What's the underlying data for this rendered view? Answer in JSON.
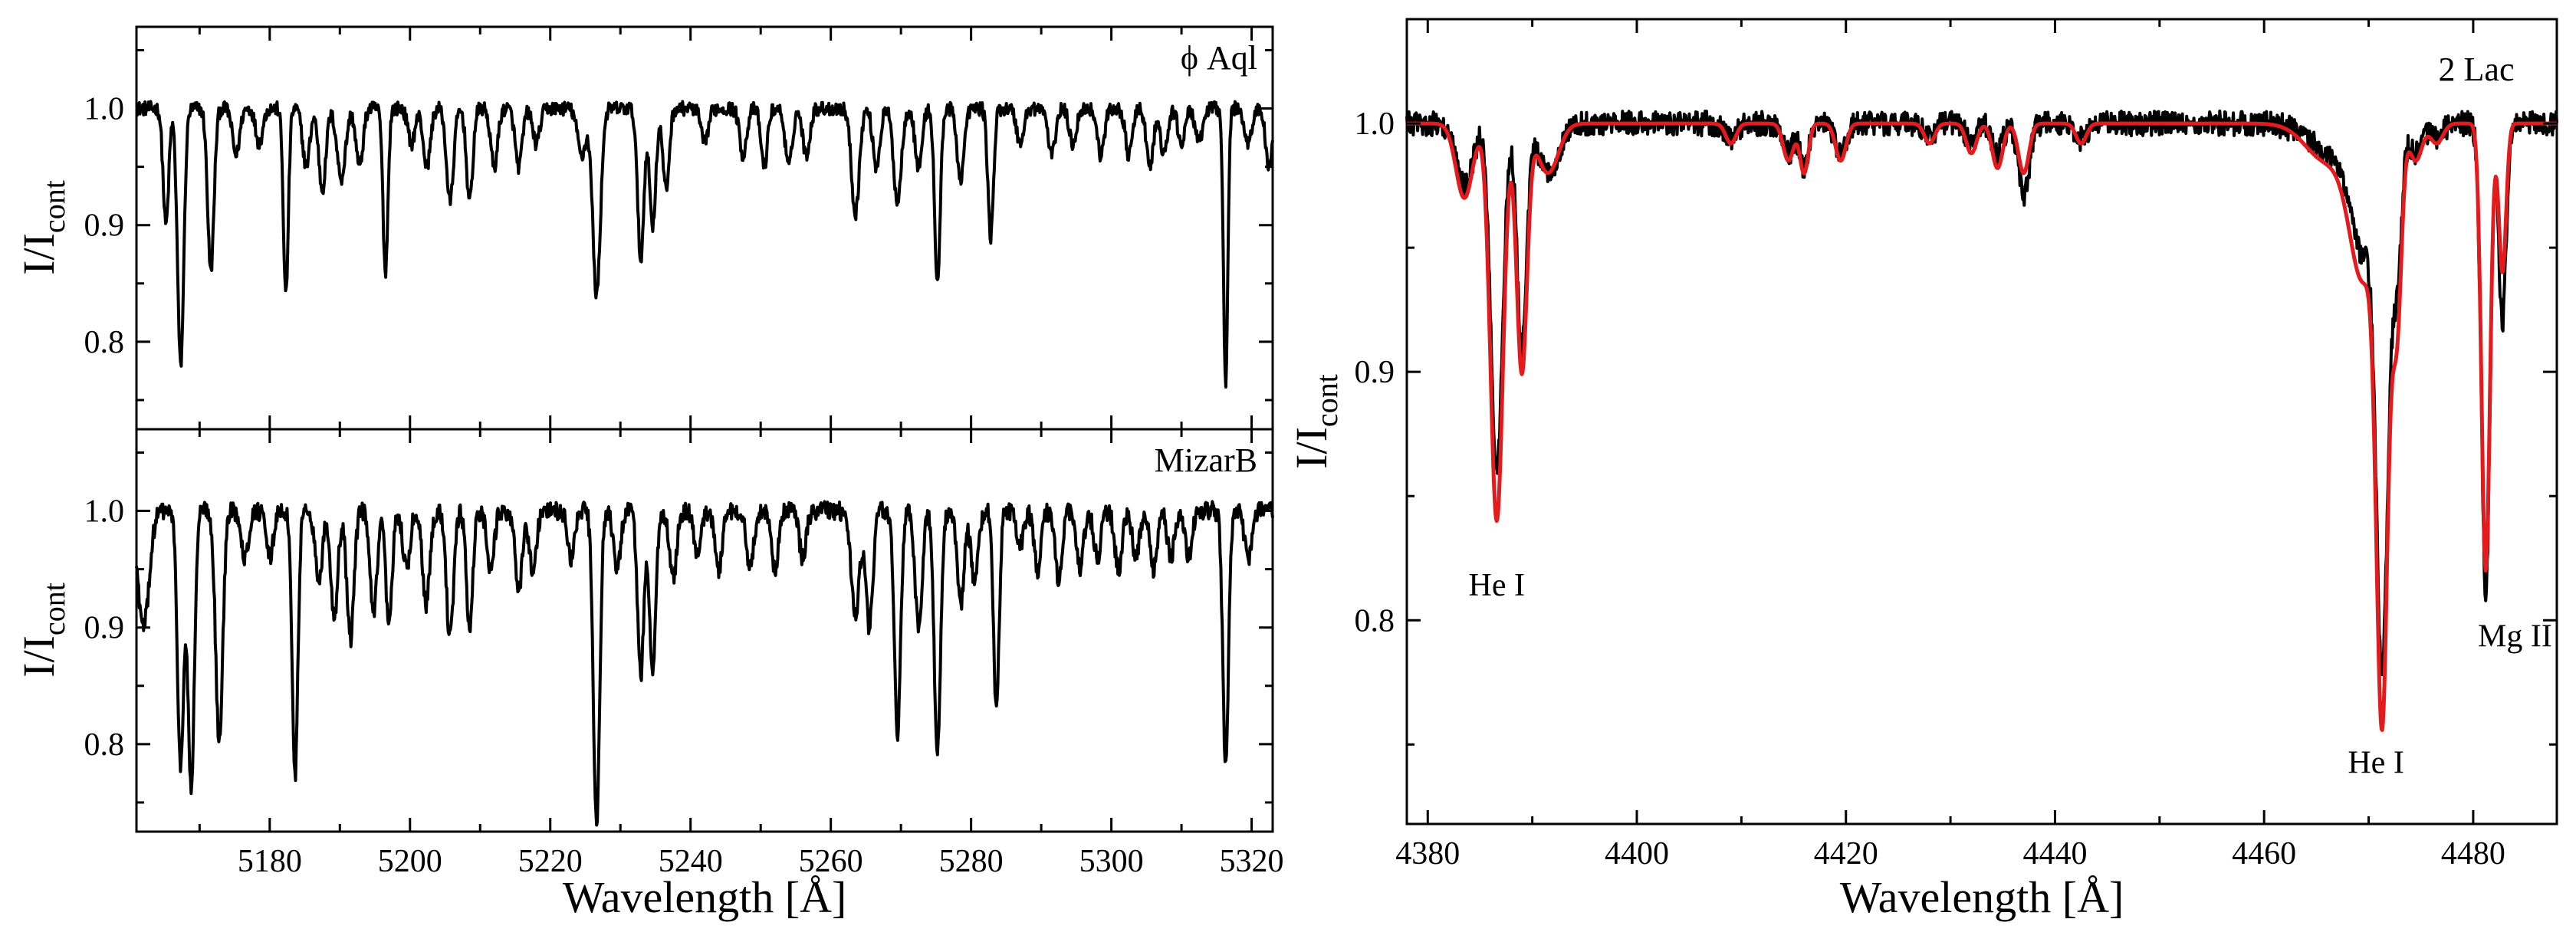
{
  "colors": {
    "observed": "#000000",
    "model": "#e41a1c"
  },
  "chart_data": [
    {
      "id": "phiaql",
      "type": "line",
      "star": "ϕ Aql",
      "ylabel_main": "I/I",
      "ylabel_sub": "cont",
      "xlabel": "",
      "xlim": [
        5161,
        5323
      ],
      "ylim": [
        0.725,
        1.07
      ],
      "xticks": [
        5180,
        5200,
        5220,
        5240,
        5260,
        5280,
        5300,
        5320
      ],
      "yticks": [
        0.8,
        0.9,
        1.0
      ],
      "ytick_labels": [
        "0.8",
        "0.9",
        "1.0"
      ],
      "continuum": 1.0,
      "noise": 0.006,
      "lines": [
        [
          5165.2,
          0.1,
          0.4
        ],
        [
          5167.3,
          0.22,
          0.45
        ],
        [
          5171.6,
          0.14,
          0.45
        ],
        [
          5175.2,
          0.04,
          0.5
        ],
        [
          5178.5,
          0.03,
          0.5
        ],
        [
          5182.3,
          0.16,
          0.35
        ],
        [
          5185.2,
          0.05,
          0.5
        ],
        [
          5187.5,
          0.07,
          0.5
        ],
        [
          5190.2,
          0.06,
          0.6
        ],
        [
          5192.8,
          0.05,
          0.5
        ],
        [
          5196.5,
          0.14,
          0.35
        ],
        [
          5200.2,
          0.03,
          0.5
        ],
        [
          5202.4,
          0.05,
          0.5
        ],
        [
          5205.7,
          0.08,
          0.5
        ],
        [
          5208.5,
          0.08,
          0.45
        ],
        [
          5212.0,
          0.05,
          0.5
        ],
        [
          5215.5,
          0.05,
          0.5
        ],
        [
          5218.0,
          0.03,
          0.5
        ],
        [
          5224.5,
          0.04,
          0.6
        ],
        [
          5226.6,
          0.16,
          0.55
        ],
        [
          5232.9,
          0.13,
          0.45
        ],
        [
          5234.6,
          0.1,
          0.45
        ],
        [
          5236.5,
          0.07,
          0.45
        ],
        [
          5242.0,
          0.03,
          0.5
        ],
        [
          5247.5,
          0.04,
          0.5
        ],
        [
          5250.5,
          0.05,
          0.45
        ],
        [
          5254.0,
          0.05,
          0.5
        ],
        [
          5256.5,
          0.04,
          0.5
        ],
        [
          5263.5,
          0.09,
          0.55
        ],
        [
          5266.5,
          0.05,
          0.5
        ],
        [
          5269.5,
          0.08,
          0.55
        ],
        [
          5272.5,
          0.05,
          0.5
        ],
        [
          5275.2,
          0.15,
          0.4
        ],
        [
          5278.5,
          0.06,
          0.5
        ],
        [
          5282.8,
          0.11,
          0.4
        ],
        [
          5287.0,
          0.03,
          0.5
        ],
        [
          5291.5,
          0.04,
          0.5
        ],
        [
          5294.5,
          0.03,
          0.5
        ],
        [
          5298.5,
          0.04,
          0.5
        ],
        [
          5302.5,
          0.04,
          0.5
        ],
        [
          5305.5,
          0.05,
          0.5
        ],
        [
          5307.5,
          0.04,
          0.5
        ],
        [
          5310.0,
          0.03,
          0.5
        ],
        [
          5312.5,
          0.03,
          0.5
        ],
        [
          5316.3,
          0.24,
          0.3
        ],
        [
          5319.5,
          0.03,
          0.5
        ],
        [
          5322.5,
          0.05,
          0.5
        ]
      ],
      "series": [
        {
          "name": "Observed spectrum",
          "color_key": "observed",
          "kind": "observed"
        }
      ],
      "annotations": []
    },
    {
      "id": "mizarb",
      "type": "line",
      "star": "MizarB",
      "ylabel_main": "I/I",
      "ylabel_sub": "cont",
      "xlabel": "Wavelength [Å]",
      "xlim": [
        5161,
        5323
      ],
      "ylim": [
        0.725,
        1.07
      ],
      "xticks": [
        5180,
        5200,
        5220,
        5240,
        5260,
        5280,
        5300,
        5320
      ],
      "xtick_labels": [
        "5180",
        "5200",
        "5220",
        "5240",
        "5260",
        "5280",
        "5300",
        "5320"
      ],
      "yticks": [
        0.8,
        0.9,
        1.0
      ],
      "ytick_labels": [
        "0.8",
        "0.9",
        "1.0"
      ],
      "continuum": 1.0,
      "noise": 0.008,
      "lines": [
        [
          5162.0,
          0.1,
          0.8
        ],
        [
          5167.3,
          0.22,
          0.45
        ],
        [
          5168.8,
          0.24,
          0.45
        ],
        [
          5172.8,
          0.2,
          0.5
        ],
        [
          5176.5,
          0.04,
          0.5
        ],
        [
          5180.0,
          0.04,
          0.5
        ],
        [
          5183.6,
          0.23,
          0.4
        ],
        [
          5187.0,
          0.06,
          0.5
        ],
        [
          5189.2,
          0.09,
          0.5
        ],
        [
          5191.5,
          0.11,
          0.5
        ],
        [
          5194.8,
          0.09,
          0.5
        ],
        [
          5197.0,
          0.1,
          0.45
        ],
        [
          5199.5,
          0.05,
          0.5
        ],
        [
          5202.3,
          0.08,
          0.5
        ],
        [
          5205.7,
          0.11,
          0.5
        ],
        [
          5208.5,
          0.1,
          0.45
        ],
        [
          5211.5,
          0.05,
          0.5
        ],
        [
          5215.5,
          0.07,
          0.5
        ],
        [
          5217.5,
          0.05,
          0.5
        ],
        [
          5223.0,
          0.04,
          0.5
        ],
        [
          5226.6,
          0.27,
          0.45
        ],
        [
          5229.5,
          0.05,
          0.5
        ],
        [
          5232.9,
          0.14,
          0.45
        ],
        [
          5234.6,
          0.14,
          0.45
        ],
        [
          5237.5,
          0.06,
          0.5
        ],
        [
          5241.0,
          0.04,
          0.5
        ],
        [
          5244.0,
          0.05,
          0.5
        ],
        [
          5248.5,
          0.05,
          0.5
        ],
        [
          5252.0,
          0.05,
          0.5
        ],
        [
          5256.0,
          0.04,
          0.5
        ],
        [
          5263.5,
          0.09,
          0.6
        ],
        [
          5265.5,
          0.1,
          0.5
        ],
        [
          5269.5,
          0.19,
          0.45
        ],
        [
          5272.5,
          0.1,
          0.5
        ],
        [
          5275.2,
          0.21,
          0.45
        ],
        [
          5278.5,
          0.08,
          0.5
        ],
        [
          5280.5,
          0.06,
          0.5
        ],
        [
          5283.6,
          0.17,
          0.4
        ],
        [
          5287.0,
          0.03,
          0.5
        ],
        [
          5289.5,
          0.05,
          0.5
        ],
        [
          5292.5,
          0.06,
          0.5
        ],
        [
          5295.5,
          0.05,
          0.5
        ],
        [
          5298.0,
          0.04,
          0.5
        ],
        [
          5301.0,
          0.05,
          0.5
        ],
        [
          5303.5,
          0.04,
          0.5
        ],
        [
          5306.0,
          0.05,
          0.5
        ],
        [
          5308.5,
          0.04,
          0.5
        ],
        [
          5311.0,
          0.04,
          0.5
        ],
        [
          5316.3,
          0.22,
          0.4
        ],
        [
          5319.5,
          0.04,
          0.5
        ]
      ],
      "series": [
        {
          "name": "Observed spectrum",
          "color_key": "observed",
          "kind": "observed"
        }
      ],
      "annotations": []
    },
    {
      "id": "lac2",
      "type": "line",
      "star": "2 Lac",
      "ylabel_main": "I/I",
      "ylabel_sub": "cont",
      "xlabel": "Wavelength [Å]",
      "xlim": [
        4378,
        4488
      ],
      "ylim": [
        0.718,
        1.042
      ],
      "xticks": [
        4380,
        4400,
        4420,
        4440,
        4460,
        4480
      ],
      "xtick_labels": [
        "4380",
        "4400",
        "4420",
        "4440",
        "4460",
        "4480"
      ],
      "yticks": [
        0.8,
        0.9,
        1.0
      ],
      "ytick_labels": [
        "0.8",
        "0.9",
        "1.0"
      ],
      "continuum": 1.0,
      "noise": 0.005,
      "lines": [
        [
          4383.5,
          0.025,
          0.8
        ],
        [
          4386.6,
          0.14,
          0.55
        ],
        [
          4389.0,
          0.09,
          0.45
        ],
        [
          4391.5,
          0.02,
          1.0
        ],
        [
          4409.0,
          0.006,
          0.6
        ],
        [
          4414.5,
          0.012,
          0.5
        ],
        [
          4416.0,
          0.018,
          0.4
        ],
        [
          4419.5,
          0.013,
          0.5
        ],
        [
          4428.0,
          0.006,
          0.5
        ],
        [
          4432.0,
          0.008,
          0.5
        ],
        [
          4434.5,
          0.012,
          0.5
        ],
        [
          4437.0,
          0.03,
          0.5
        ],
        [
          4442.5,
          0.006,
          0.5
        ],
        [
          4466.0,
          0.01,
          2.0
        ],
        [
          4469.5,
          0.05,
          1.3
        ],
        [
          4471.3,
          0.2,
          0.55
        ],
        [
          4472.7,
          0.06,
          0.45
        ],
        [
          4474.5,
          0.012,
          0.6
        ],
        [
          4476.5,
          0.006,
          0.6
        ],
        [
          4481.2,
          0.19,
          0.4
        ],
        [
          4482.8,
          0.08,
          0.35
        ]
      ],
      "model_lines": [
        [
          4383.5,
          0.03,
          0.8
        ],
        [
          4386.6,
          0.16,
          0.6
        ],
        [
          4389.0,
          0.1,
          0.5
        ],
        [
          4391.5,
          0.02,
          1.0
        ],
        [
          4409.0,
          0.008,
          0.5
        ],
        [
          4414.5,
          0.015,
          0.5
        ],
        [
          4416.0,
          0.02,
          0.4
        ],
        [
          4419.5,
          0.015,
          0.5
        ],
        [
          4428.0,
          0.008,
          0.5
        ],
        [
          4432.0,
          0.012,
          0.5
        ],
        [
          4434.5,
          0.018,
          0.5
        ],
        [
          4437.0,
          0.02,
          0.5
        ],
        [
          4442.5,
          0.008,
          0.5
        ],
        [
          4466.0,
          0.015,
          2.0
        ],
        [
          4469.5,
          0.06,
          1.3
        ],
        [
          4471.3,
          0.22,
          0.55
        ],
        [
          4472.7,
          0.08,
          0.45
        ],
        [
          4474.5,
          0.015,
          0.6
        ],
        [
          4476.5,
          0.008,
          0.6
        ],
        [
          4481.2,
          0.18,
          0.4
        ],
        [
          4482.8,
          0.06,
          0.35
        ]
      ],
      "series": [
        {
          "name": "Observed spectrum",
          "color_key": "observed",
          "kind": "observed"
        },
        {
          "name": "Model spectrum",
          "color_key": "model",
          "kind": "model"
        }
      ],
      "annotations": [
        {
          "text": "He I",
          "x": 4386.6,
          "y": 0.81
        },
        {
          "text": "He I",
          "x": 4470.7,
          "y": 0.7385
        },
        {
          "text": "Mg II",
          "x": 4484.0,
          "y": 0.7895
        }
      ]
    }
  ]
}
